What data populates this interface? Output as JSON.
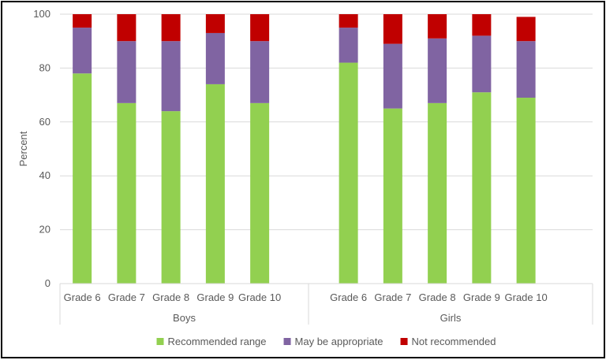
{
  "chart_data": {
    "type": "bar",
    "stacked": true,
    "title": "",
    "ylabel": "Percent",
    "xlabel": "",
    "ylim": [
      0,
      100
    ],
    "yticks": [
      0,
      20,
      40,
      60,
      80,
      100
    ],
    "grid": true,
    "legend_position": "bottom",
    "groups": [
      {
        "name": "Boys",
        "categories": [
          "Grade 6",
          "Grade 7",
          "Grade 8",
          "Grade 9",
          "Grade 10"
        ]
      },
      {
        "name": "Girls",
        "categories": [
          "Grade 6",
          "Grade 7",
          "Grade 8",
          "Grade 9",
          "Grade 10"
        ]
      }
    ],
    "series": [
      {
        "name": "Recommended range",
        "color": "#92d050",
        "values": [
          78,
          67,
          64,
          74,
          67,
          82,
          65,
          67,
          71,
          69
        ]
      },
      {
        "name": "May be appropriate",
        "color": "#8064a2",
        "values": [
          17,
          23,
          26,
          19,
          23,
          13,
          24,
          24,
          21,
          21
        ]
      },
      {
        "name": "Not recommended",
        "color": "#c00000",
        "values": [
          5,
          10,
          10,
          7,
          10,
          5,
          11,
          9,
          8,
          9
        ]
      }
    ]
  }
}
